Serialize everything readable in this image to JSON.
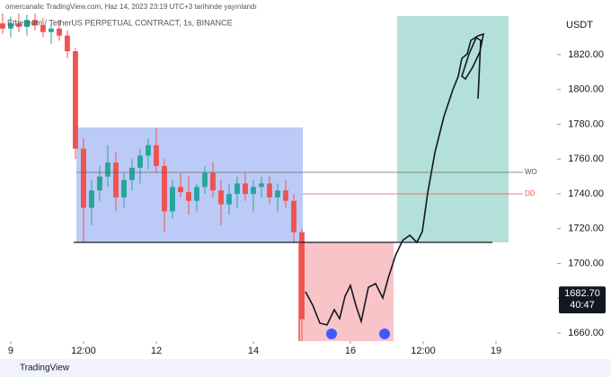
{
  "header": "omercanalic TradingView.com, Haz 14, 2023 23:19 UTC+3 tarihinde yayınlandı",
  "footer": "TradingView",
  "chart_data": {
    "type": "candlestick",
    "title": "Ethereum / TetherUS PERPETUAL CONTRACT, 1s, BINANCE",
    "y_axis_label": "USDT",
    "up_color": "#26a69a",
    "down_color": "#ef5350",
    "x": [
      -4,
      0,
      4,
      8,
      12,
      16,
      20,
      24,
      28,
      32,
      36,
      40,
      44,
      48,
      52,
      56,
      60,
      64,
      68,
      72,
      76,
      80,
      84,
      88,
      92,
      96,
      100,
      104,
      108,
      112,
      116,
      120,
      124,
      128,
      132,
      136,
      140,
      144
    ],
    "open": [
      1838,
      1835,
      1838,
      1836,
      1840,
      1837,
      1833,
      1835,
      1831,
      1822,
      1766,
      1732,
      1742,
      1750,
      1758,
      1738,
      1748,
      1755,
      1762,
      1768,
      1756,
      1730,
      1744,
      1741,
      1736,
      1744,
      1752,
      1742,
      1734,
      1740,
      1746,
      1740,
      1744,
      1746,
      1738,
      1742,
      1736,
      1718
    ],
    "high": [
      1845,
      1842,
      1844,
      1843,
      1846,
      1841,
      1838,
      1840,
      1834,
      1824,
      1772,
      1748,
      1756,
      1768,
      1764,
      1752,
      1760,
      1766,
      1772,
      1778,
      1760,
      1748,
      1752,
      1750,
      1746,
      1756,
      1758,
      1748,
      1746,
      1750,
      1752,
      1748,
      1750,
      1750,
      1746,
      1748,
      1740,
      1720
    ],
    "low": [
      1832,
      1830,
      1833,
      1831,
      1834,
      1830,
      1826,
      1828,
      1818,
      1760,
      1712,
      1722,
      1736,
      1744,
      1730,
      1732,
      1742,
      1746,
      1754,
      1752,
      1718,
      1726,
      1738,
      1728,
      1730,
      1740,
      1738,
      1722,
      1728,
      1732,
      1736,
      1730,
      1738,
      1734,
      1730,
      1732,
      1712,
      1655
    ],
    "close": [
      1835,
      1838,
      1836,
      1840,
      1837,
      1833,
      1835,
      1831,
      1822,
      1766,
      1732,
      1742,
      1750,
      1758,
      1738,
      1748,
      1755,
      1762,
      1768,
      1756,
      1730,
      1744,
      1741,
      1736,
      1744,
      1752,
      1742,
      1734,
      1740,
      1746,
      1740,
      1744,
      1746,
      1738,
      1742,
      1736,
      1718,
      1668
    ],
    "xlim": [
      -5.3,
      270.2
    ],
    "xticks": [
      {
        "value": 0,
        "label": "9"
      },
      {
        "value": 36,
        "label": "12:00"
      },
      {
        "value": 72,
        "label": "12"
      },
      {
        "value": 120,
        "label": "14"
      },
      {
        "value": 168,
        "label": "16"
      },
      {
        "value": 204,
        "label": "12:00"
      },
      {
        "value": 240,
        "label": "19"
      }
    ],
    "ylim": [
      1655.4,
      1843.7
    ],
    "yticks": [
      {
        "value": 1660,
        "label": "1660.00"
      },
      {
        "value": 1680,
        "label": "1680.00"
      },
      {
        "value": 1700,
        "label": "1700.00"
      },
      {
        "value": 1720,
        "label": "1720.00"
      },
      {
        "value": 1740,
        "label": "1740.00"
      },
      {
        "value": 1760,
        "label": "1760.00"
      },
      {
        "value": 1780,
        "label": "1780.00"
      },
      {
        "value": 1800,
        "label": "1800.00"
      },
      {
        "value": 1820,
        "label": "1820.00"
      }
    ],
    "last_price": {
      "value": 1682.7,
      "label": "1682.70"
    },
    "countdown": "40:47",
    "annotations": [
      "WO",
      "DD"
    ]
  }
}
